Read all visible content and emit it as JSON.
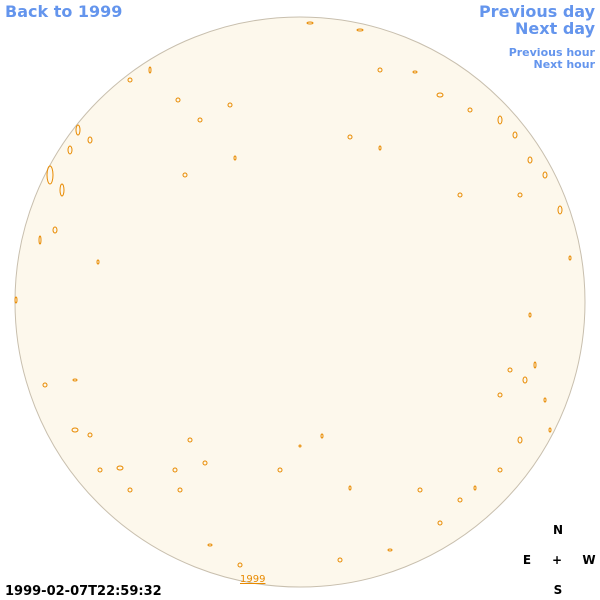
{
  "nav": {
    "back": "Back to 1999",
    "previous_day": "Previous day",
    "next_day": "Next day",
    "previous_hour": "Previous hour",
    "next_hour": "Next hour"
  },
  "timestamp": "1999-02-07T22:59:32",
  "disk_label": "1999",
  "compass": {
    "n": "N",
    "e": "E",
    "center": "+",
    "w": "W",
    "s": "S"
  }
}
